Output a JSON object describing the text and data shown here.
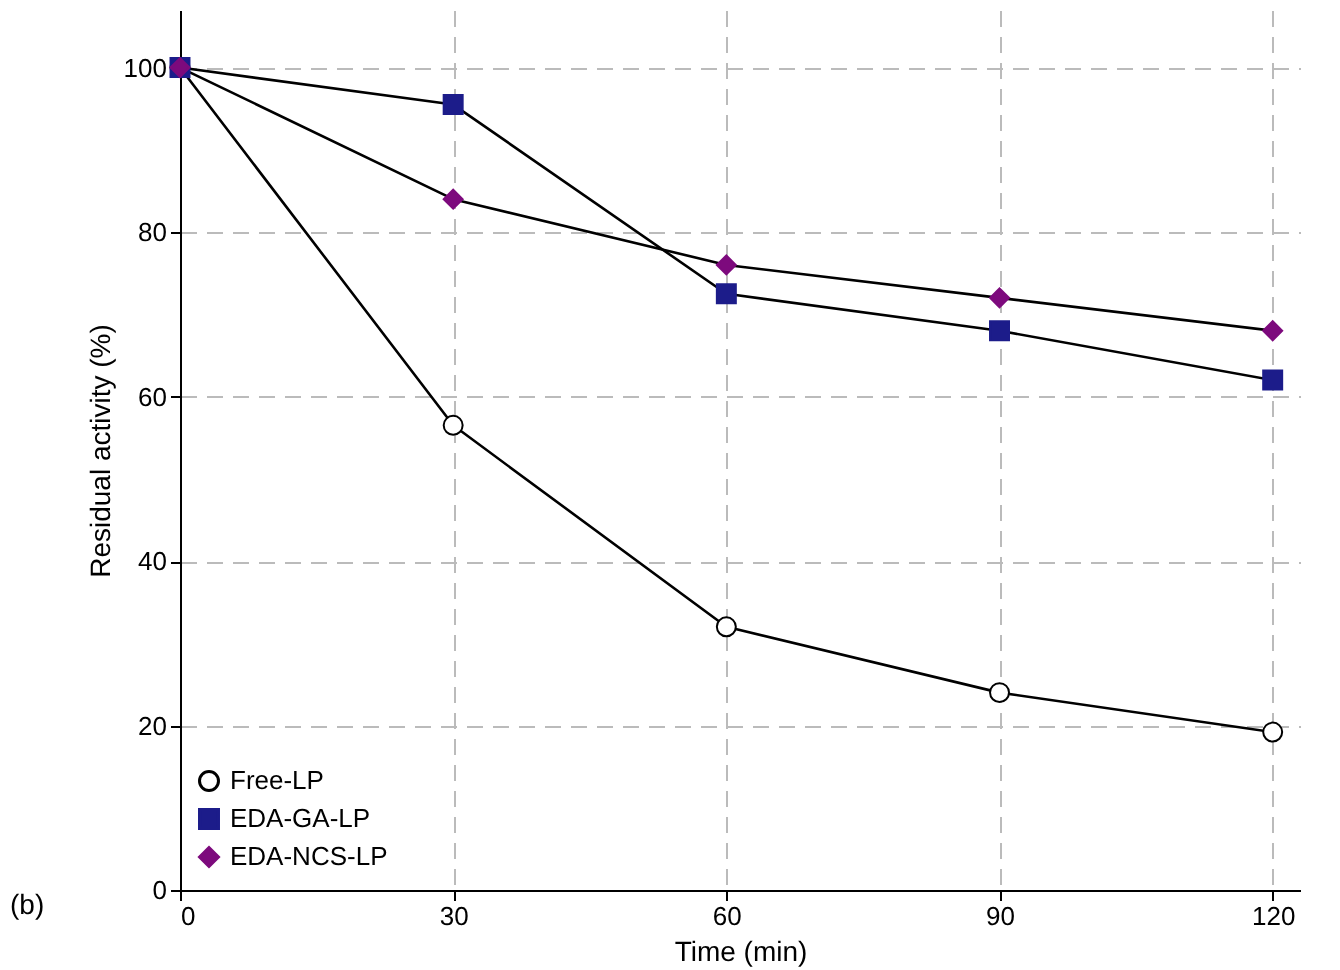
{
  "chart_data": {
    "type": "line",
    "xlabel": "Time (min)",
    "ylabel": "Residual activity (%)",
    "x": [
      0,
      30,
      60,
      90,
      120
    ],
    "series": [
      {
        "name": "Free-LP",
        "color": "#ffffff",
        "marker": "circle",
        "values": [
          100,
          56.5,
          32,
          24,
          19.2
        ]
      },
      {
        "name": "EDA-GA-LP",
        "color": "#1c1c8a",
        "marker": "square",
        "values": [
          100,
          95.5,
          72.5,
          68,
          62
        ]
      },
      {
        "name": "EDA-NCS-LP",
        "color": "#7d0a7d",
        "marker": "diamond",
        "values": [
          100,
          84,
          76,
          72,
          68
        ]
      }
    ],
    "xlim": [
      0,
      123
    ],
    "ylim": [
      0,
      107
    ],
    "xticks": [
      0,
      30,
      60,
      90,
      120
    ],
    "yticks": [
      0,
      20,
      40,
      60,
      80,
      100
    ],
    "grid": true,
    "legend": "bottom left",
    "line_style": "solid",
    "annotations": [
      "(b)"
    ]
  }
}
